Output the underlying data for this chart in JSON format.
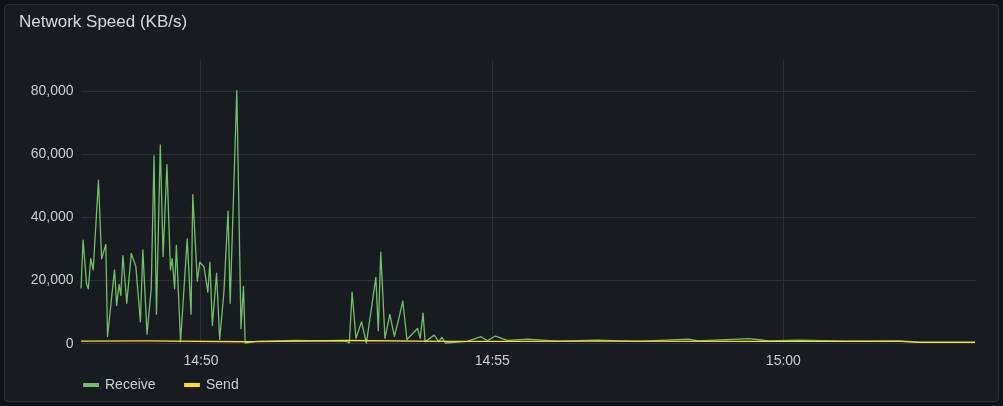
{
  "chart_data": {
    "type": "line",
    "title": "Network Speed (KB/s)",
    "xlim": [
      14.7991,
      15.055
    ],
    "xticks": [
      {
        "value": 14.8333,
        "label": "14:50"
      },
      {
        "value": 14.9167,
        "label": "14:55"
      },
      {
        "value": 15.0,
        "label": "15:00"
      }
    ],
    "ylim": [
      0,
      90000
    ],
    "yticks": [
      0,
      {
        "value": 20000,
        "label": "20,000"
      },
      {
        "value": 40000,
        "label": "40,000"
      },
      {
        "value": 60000,
        "label": "60,000"
      },
      {
        "value": 80000,
        "label": "80,000"
      }
    ],
    "grid": true,
    "legend": "bottom left",
    "marker": "none",
    "line_style": "solid",
    "series": [
      {
        "name": "Receive",
        "color": "#73bf69",
        "x": [
          14.7991,
          14.7997,
          14.8007,
          14.8012,
          14.8019,
          14.8026,
          14.8041,
          14.805,
          14.8062,
          14.8067,
          14.8087,
          14.8093,
          14.81,
          14.8105,
          14.8111,
          14.8122,
          14.8135,
          14.8148,
          14.8161,
          14.8168,
          14.818,
          14.8192,
          14.82,
          14.8207,
          14.8218,
          14.8226,
          14.8237,
          14.8247,
          14.8252,
          14.8259,
          14.8264,
          14.8276,
          14.8295,
          14.8306,
          14.8311,
          14.8324,
          14.8331,
          14.8343,
          14.8354,
          14.836,
          14.8367,
          14.8379,
          14.8388,
          14.84,
          14.8412,
          14.8418,
          14.8437,
          14.8449,
          14.8456,
          14.8461,
          14.8492,
          14.8607,
          14.8722,
          14.8751,
          14.8759,
          14.8767,
          14.8778,
          14.8794,
          14.8808,
          14.8835,
          14.8842,
          14.8849,
          14.8861,
          14.8875,
          14.8888,
          14.89,
          14.8912,
          14.8924,
          14.8954,
          14.8962,
          14.897,
          14.8976,
          14.9002,
          14.9015,
          14.9024,
          14.9034,
          14.9096,
          14.9136,
          14.9154,
          14.9177,
          14.9211,
          14.9269,
          14.9355,
          14.947,
          14.9585,
          14.973,
          14.9758,
          14.9902,
          14.996,
          15.0046,
          15.019,
          15.0334,
          15.0391,
          15.055
        ],
        "values": [
          17300,
          32600,
          18600,
          17200,
          26700,
          23200,
          51600,
          26700,
          31200,
          2100,
          23200,
          11900,
          18600,
          15100,
          27700,
          12600,
          28400,
          24200,
          6700,
          29500,
          2800,
          17200,
          59300,
          9100,
          62800,
          27400,
          56500,
          23200,
          26700,
          17200,
          30900,
          400,
          33000,
          9100,
          47000,
          19600,
          25600,
          24200,
          16100,
          25600,
          5600,
          22100,
          1100,
          16100,
          41800,
          12600,
          80000,
          4600,
          17900,
          0,
          500,
          800,
          600,
          500,
          0,
          16100,
          1500,
          6700,
          0,
          20800,
          3900,
          28800,
          1500,
          9100,
          2100,
          7400,
          13300,
          1100,
          4600,
          1500,
          9500,
          400,
          2500,
          400,
          1800,
          0,
          500,
          2000,
          700,
          2200,
          800,
          1200,
          600,
          900,
          500,
          1200,
          700,
          1400,
          700,
          900,
          600,
          700,
          300,
          300
        ]
      },
      {
        "name": "Send",
        "color": "#fade2a",
        "x": [
          14.7991,
          14.8175,
          14.8463,
          14.8751,
          14.9039,
          14.947,
          15.0046,
          15.0334,
          15.0391,
          15.055
        ],
        "values": [
          600,
          700,
          400,
          800,
          500,
          600,
          500,
          500,
          200,
          200
        ]
      }
    ]
  }
}
